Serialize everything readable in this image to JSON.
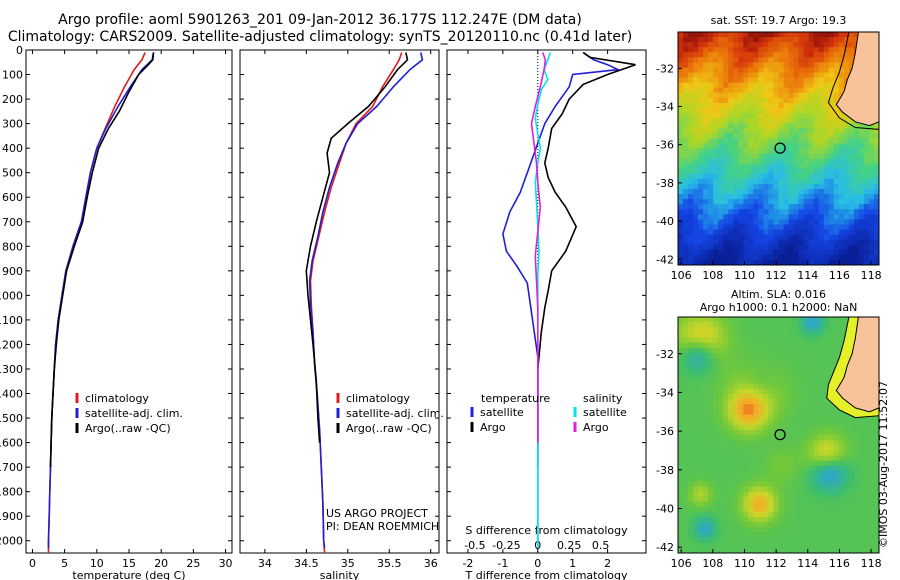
{
  "header": {
    "line1": "Argo profile: aoml 5901263_201 09-Jan-2012 36.177S 112.247E (DM data)",
    "line2": "Climatology: CARS2009. Satellite-adjusted climatology: synTS_20120110.nc (0.41d later)"
  },
  "colors": {
    "clim": "#e41a1c",
    "sat": "#1f1fd6",
    "argo": "#000000",
    "sal_sat": "#00e5ee",
    "sal_argo": "#e01ee0",
    "land": "#f8c39a"
  },
  "chart_data": [
    {
      "type": "line",
      "name_key": "temperature-profile",
      "xlabel": "temperature (deg C)",
      "xlim": [
        -1,
        31
      ],
      "ylim": [
        2050,
        0
      ],
      "xticks": [
        0,
        5,
        10,
        15,
        20,
        25,
        30
      ],
      "yticks": [
        0,
        100,
        200,
        300,
        400,
        500,
        600,
        700,
        800,
        900,
        1000,
        1100,
        1200,
        1300,
        1400,
        1500,
        1600,
        1700,
        1800,
        1900,
        2000
      ],
      "series": [
        {
          "name": "climatology",
          "color_key": "clim",
          "points": [
            [
              17.5,
              10
            ],
            [
              17.0,
              40
            ],
            [
              15.8,
              80
            ],
            [
              14.3,
              150
            ],
            [
              12.8,
              230
            ],
            [
              11.3,
              320
            ],
            [
              10.0,
              400
            ],
            [
              9.0,
              500
            ],
            [
              8.3,
              600
            ],
            [
              7.6,
              700
            ],
            [
              6.3,
              800
            ],
            [
              5.2,
              900
            ],
            [
              4.6,
              1000
            ],
            [
              4.0,
              1100
            ],
            [
              3.6,
              1200
            ],
            [
              3.4,
              1300
            ],
            [
              3.2,
              1400
            ],
            [
              3.0,
              1500
            ],
            [
              2.9,
              1600
            ],
            [
              2.8,
              1700
            ],
            [
              2.7,
              1800
            ],
            [
              2.6,
              1900
            ],
            [
              2.5,
              2000
            ],
            [
              2.5,
              2050
            ]
          ]
        },
        {
          "name": "satellite-adj. clim.",
          "color_key": "sat",
          "points": [
            [
              18.8,
              10
            ],
            [
              18.6,
              40
            ],
            [
              17.0,
              80
            ],
            [
              15.2,
              150
            ],
            [
              13.3,
              230
            ],
            [
              11.4,
              320
            ],
            [
              10.0,
              400
            ],
            [
              9.0,
              500
            ],
            [
              8.3,
              600
            ],
            [
              7.6,
              700
            ],
            [
              6.3,
              800
            ],
            [
              5.2,
              900
            ],
            [
              4.6,
              1000
            ],
            [
              4.0,
              1100
            ],
            [
              3.6,
              1200
            ],
            [
              3.4,
              1300
            ],
            [
              3.2,
              1400
            ],
            [
              3.0,
              1500
            ],
            [
              2.9,
              1600
            ],
            [
              2.8,
              1700
            ],
            [
              2.7,
              1800
            ],
            [
              2.6,
              1900
            ],
            [
              2.5,
              2000
            ],
            [
              2.5,
              2030
            ]
          ]
        },
        {
          "name": "Argo(..raw -QC)",
          "color_key": "argo",
          "points": [
            [
              18.8,
              10
            ],
            [
              18.7,
              40
            ],
            [
              18.0,
              60
            ],
            [
              16.5,
              100
            ],
            [
              15.0,
              170
            ],
            [
              13.5,
              250
            ],
            [
              11.8,
              320
            ],
            [
              10.3,
              400
            ],
            [
              9.3,
              500
            ],
            [
              8.5,
              600
            ],
            [
              7.8,
              700
            ],
            [
              6.5,
              800
            ],
            [
              5.3,
              900
            ],
            [
              4.7,
              1000
            ],
            [
              4.1,
              1100
            ],
            [
              3.7,
              1200
            ],
            [
              3.4,
              1300
            ],
            [
              3.2,
              1400
            ],
            [
              3.0,
              1500
            ],
            [
              2.9,
              1600
            ],
            [
              2.8,
              1700
            ]
          ]
        }
      ],
      "legend": [
        "climatology",
        "satellite-adj. clim.",
        "Argo(..raw -QC)"
      ]
    },
    {
      "type": "line",
      "name_key": "salinity-profile",
      "xlabel": "salinity",
      "xlim": [
        33.7,
        36.1
      ],
      "ylim": [
        2050,
        0
      ],
      "xticks": [
        34,
        34.5,
        35,
        35.5,
        36
      ],
      "tick_labels": [
        "34",
        "34.5",
        "35",
        "35.5",
        "36"
      ],
      "series": [
        {
          "name": "climatology",
          "color_key": "clim",
          "points": [
            [
              35.65,
              10
            ],
            [
              35.62,
              40
            ],
            [
              35.55,
              80
            ],
            [
              35.42,
              150
            ],
            [
              35.3,
              230
            ],
            [
              35.1,
              300
            ],
            [
              34.98,
              380
            ],
            [
              34.9,
              460
            ],
            [
              34.8,
              560
            ],
            [
              34.72,
              660
            ],
            [
              34.65,
              760
            ],
            [
              34.58,
              860
            ],
            [
              34.55,
              940
            ],
            [
              34.56,
              1040
            ],
            [
              34.58,
              1150
            ],
            [
              34.6,
              1280
            ],
            [
              34.63,
              1400
            ],
            [
              34.66,
              1550
            ],
            [
              34.68,
              1700
            ],
            [
              34.7,
              1850
            ],
            [
              34.71,
              2000
            ],
            [
              34.72,
              2050
            ]
          ]
        },
        {
          "name": "satellite-adj. clim.",
          "color_key": "sat",
          "points": [
            [
              35.88,
              10
            ],
            [
              35.9,
              40
            ],
            [
              35.75,
              80
            ],
            [
              35.55,
              150
            ],
            [
              35.35,
              230
            ],
            [
              35.12,
              300
            ],
            [
              34.98,
              380
            ],
            [
              34.88,
              460
            ],
            [
              34.78,
              560
            ],
            [
              34.7,
              660
            ],
            [
              34.64,
              760
            ],
            [
              34.57,
              860
            ],
            [
              34.54,
              940
            ],
            [
              34.55,
              1040
            ],
            [
              34.58,
              1150
            ],
            [
              34.6,
              1280
            ],
            [
              34.63,
              1400
            ],
            [
              34.66,
              1550
            ],
            [
              34.68,
              1700
            ],
            [
              34.7,
              1850
            ],
            [
              34.71,
              2000
            ],
            [
              34.72,
              2030
            ]
          ]
        },
        {
          "name": "Argo(..raw -QC)",
          "color_key": "argo",
          "points": [
            [
              35.7,
              10
            ],
            [
              35.72,
              40
            ],
            [
              35.6,
              80
            ],
            [
              35.45,
              150
            ],
            [
              35.25,
              230
            ],
            [
              35.0,
              300
            ],
            [
              34.8,
              360
            ],
            [
              34.75,
              420
            ],
            [
              34.78,
              500
            ],
            [
              34.7,
              600
            ],
            [
              34.62,
              700
            ],
            [
              34.55,
              800
            ],
            [
              34.5,
              900
            ],
            [
              34.52,
              1000
            ],
            [
              34.55,
              1100
            ],
            [
              34.58,
              1200
            ],
            [
              34.62,
              1350
            ],
            [
              34.64,
              1500
            ],
            [
              34.66,
              1600
            ]
          ]
        }
      ],
      "legend": [
        "climatology",
        "satellite-adj. clim.",
        "Argo(..raw -QC)"
      ],
      "annotations": [
        "US ARGO PROJECT",
        "PI: DEAN ROEMMICH"
      ]
    },
    {
      "type": "line",
      "name_key": "difference-profile",
      "xlabel": "T difference from climatology",
      "xlabel_top": "S difference from climatology",
      "xlim": [
        -2.6,
        3.1
      ],
      "ylim": [
        2050,
        0
      ],
      "xticks": [
        -2,
        -1,
        0,
        1,
        2
      ],
      "tick_labels": [
        "-2",
        "-1",
        "0",
        "1",
        "2"
      ],
      "s_ticks": [
        -0.5,
        -0.25,
        0,
        0.25,
        0.5
      ],
      "s_tick_labels": [
        "-0.5",
        "-0.25",
        "0",
        "0.25",
        "0.5"
      ],
      "s_scale": 3.6,
      "series": [
        {
          "name": "satellite",
          "group": "temperature",
          "color_key": "sat",
          "points": [
            [
              1.3,
              10
            ],
            [
              1.6,
              40
            ],
            [
              2.0,
              60
            ],
            [
              2.3,
              80
            ],
            [
              1.0,
              100
            ],
            [
              0.9,
              150
            ],
            [
              0.5,
              230
            ],
            [
              0.2,
              300
            ],
            [
              0.0,
              380
            ],
            [
              -0.2,
              460
            ],
            [
              -0.4,
              540
            ],
            [
              -0.5,
              580
            ],
            [
              -0.8,
              660
            ],
            [
              -1.0,
              750
            ],
            [
              -0.9,
              820
            ],
            [
              -0.6,
              880
            ],
            [
              -0.3,
              950
            ],
            [
              -0.2,
              1050
            ],
            [
              -0.1,
              1150
            ],
            [
              0.0,
              1250
            ],
            [
              0.0,
              1400
            ],
            [
              0.0,
              1600
            ],
            [
              0.0,
              1800
            ],
            [
              0.0,
              2030
            ]
          ]
        },
        {
          "name": "Argo",
          "group": "temperature",
          "color_key": "argo",
          "points": [
            [
              1.3,
              10
            ],
            [
              1.5,
              30
            ],
            [
              2.8,
              60
            ],
            [
              2.0,
              100
            ],
            [
              1.3,
              140
            ],
            [
              0.9,
              200
            ],
            [
              0.7,
              260
            ],
            [
              0.4,
              320
            ],
            [
              0.3,
              400
            ],
            [
              0.2,
              460
            ],
            [
              0.3,
              520
            ],
            [
              0.5,
              580
            ],
            [
              0.8,
              640
            ],
            [
              1.1,
              720
            ],
            [
              0.8,
              820
            ],
            [
              0.4,
              900
            ],
            [
              0.3,
              980
            ],
            [
              0.2,
              1050
            ],
            [
              0.1,
              1150
            ],
            [
              0.0,
              1300
            ],
            [
              0.0,
              1500
            ],
            [
              0.0,
              1700
            ]
          ]
        },
        {
          "name": "satellite",
          "group": "salinity",
          "color_key": "sal_sat",
          "points": [
            [
              0.1,
              10
            ],
            [
              0.08,
              40
            ],
            [
              0.05,
              80
            ],
            [
              0.08,
              120
            ],
            [
              0.03,
              160
            ],
            [
              0.0,
              220
            ],
            [
              -0.02,
              280
            ],
            [
              0.0,
              340
            ],
            [
              0.02,
              400
            ],
            [
              0.0,
              460
            ],
            [
              -0.02,
              540
            ],
            [
              -0.01,
              620
            ],
            [
              0.0,
              720
            ],
            [
              0.01,
              820
            ],
            [
              0.0,
              920
            ],
            [
              0.0,
              1100
            ],
            [
              0.0,
              1300
            ],
            [
              0.0,
              1500
            ],
            [
              0.0,
              1700
            ],
            [
              0.0,
              1900
            ],
            [
              0.0,
              2030
            ]
          ]
        },
        {
          "name": "Argo",
          "group": "salinity",
          "color_key": "sal_argo",
          "points": [
            [
              0.04,
              10
            ],
            [
              0.06,
              40
            ],
            [
              0.05,
              80
            ],
            [
              0.02,
              150
            ],
            [
              -0.02,
              230
            ],
            [
              -0.05,
              300
            ],
            [
              -0.03,
              380
            ],
            [
              -0.01,
              460
            ],
            [
              0.0,
              540
            ],
            [
              0.02,
              640
            ],
            [
              0.0,
              740
            ],
            [
              -0.02,
              840
            ],
            [
              -0.01,
              940
            ],
            [
              0.0,
              1050
            ],
            [
              0.0,
              1200
            ],
            [
              0.0,
              1400
            ],
            [
              0.0,
              1600
            ]
          ]
        }
      ],
      "legend_groups": [
        "temperature",
        "salinity"
      ],
      "legend": [
        "satellite",
        "Argo",
        "satellite",
        "Argo"
      ]
    },
    {
      "type": "heatmap",
      "name_key": "sst-map",
      "title": "sat. SST: 19.7 Argo: 19.3",
      "xlim": [
        105.8,
        118.5
      ],
      "ylim": [
        -42.3,
        -30.1
      ],
      "xticks": [
        106,
        108,
        110,
        112,
        114,
        116,
        118
      ],
      "yticks": [
        -32,
        -34,
        -36,
        -38,
        -40,
        -42
      ],
      "float_position": [
        112.25,
        -36.18
      ]
    },
    {
      "type": "heatmap",
      "name_key": "sla-map",
      "title": "Altim. SLA: 0.016",
      "subtitle": "Argo h1000: 0.1 h2000: NaN",
      "xlim": [
        105.8,
        118.5
      ],
      "ylim": [
        -42.3,
        -30.1
      ],
      "xticks": [
        106,
        108,
        110,
        112,
        114,
        116,
        118
      ],
      "yticks": [
        -32,
        -34,
        -36,
        -38,
        -40,
        -42
      ],
      "float_position": [
        112.25,
        -36.18
      ]
    }
  ],
  "footer": {
    "stamp": "©IMOS 03-Aug-2017 11:52:07"
  }
}
